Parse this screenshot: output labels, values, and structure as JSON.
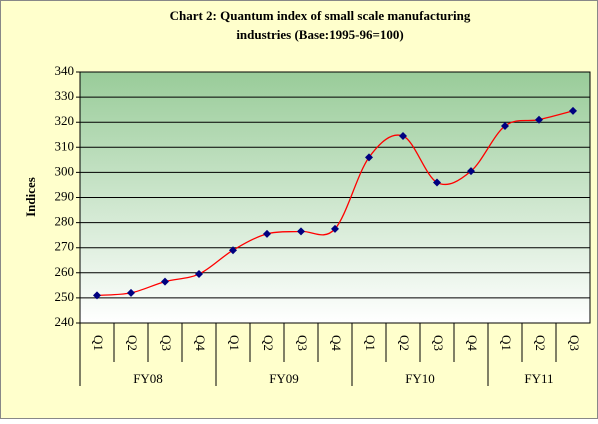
{
  "chart_data": {
    "type": "line",
    "title": [
      "Chart 2: Quantum index of small scale manufacturing",
      "industries (Base:1995-96=100)"
    ],
    "y_label": "Indices",
    "groups": [
      {
        "name": "FY08",
        "categories": [
          "Q1",
          "Q2",
          "Q3",
          "Q4"
        ]
      },
      {
        "name": "FY09",
        "categories": [
          "Q1",
          "Q2",
          "Q3",
          "Q4"
        ]
      },
      {
        "name": "FY10",
        "categories": [
          "Q1",
          "Q2",
          "Q3",
          "Q4"
        ]
      },
      {
        "name": "FY11",
        "categories": [
          "Q1",
          "Q2",
          "Q3"
        ]
      }
    ],
    "values": [
      251,
      252,
      256.5,
      259.5,
      269,
      275.5,
      276.5,
      277.5,
      306,
      314.5,
      296,
      300.5,
      318.5,
      321,
      324.5
    ],
    "color": "#ff0000",
    "marker_color": "#000080",
    "smooth": true,
    "ylim": [
      240,
      340
    ],
    "yticks": [
      240,
      250,
      260,
      270,
      280,
      290,
      300,
      310,
      320,
      330,
      340
    ],
    "grid": true
  }
}
